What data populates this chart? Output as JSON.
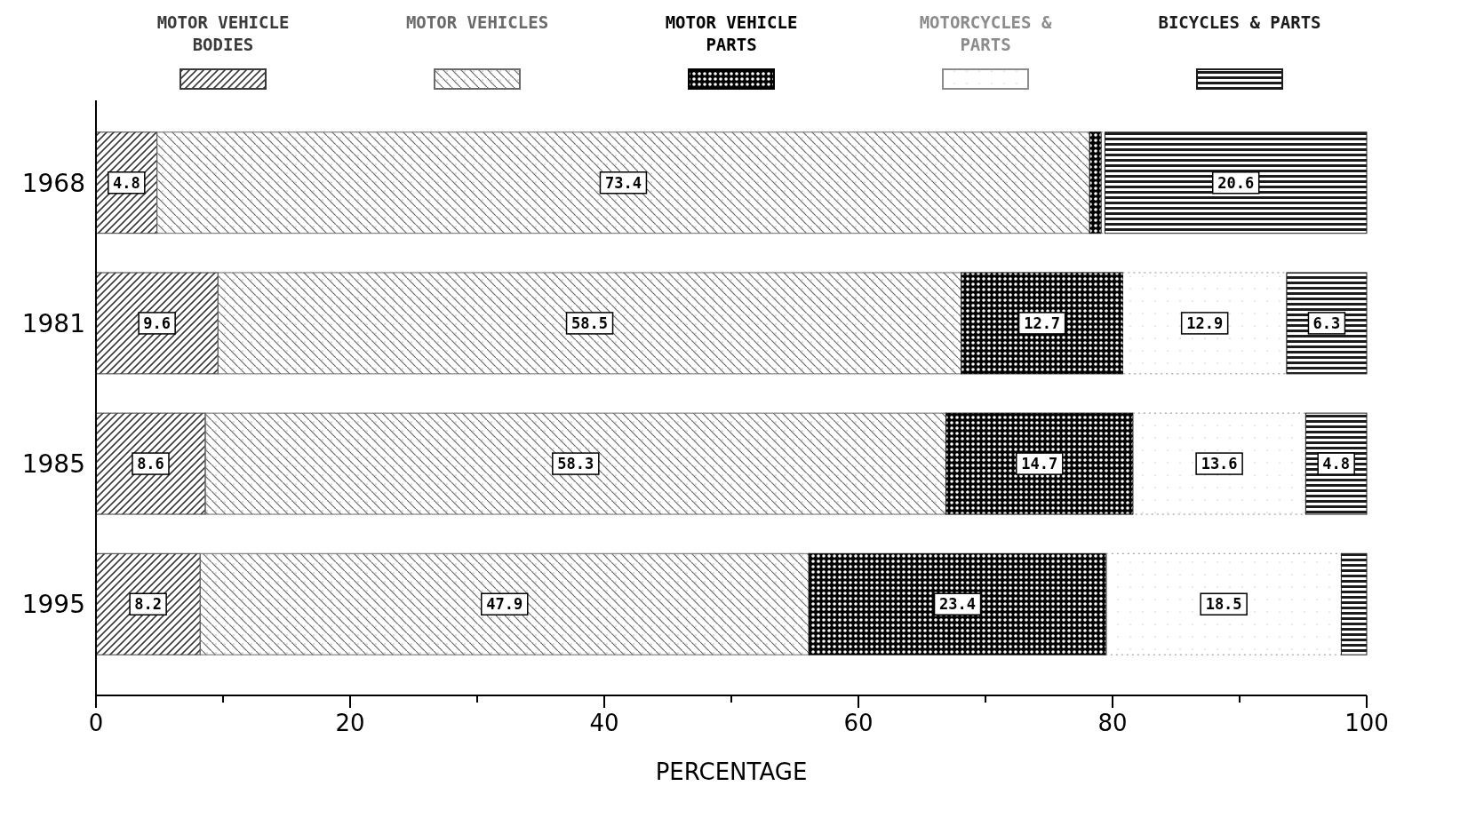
{
  "chart_data": {
    "type": "bar",
    "orientation": "horizontal",
    "stacked": true,
    "xlabel": "PERCENTAGE",
    "categories": [
      "1968",
      "1981",
      "1985",
      "1995"
    ],
    "series": [
      {
        "name": "MOTOR VEHICLE BODIES",
        "color": "#3a3a3a",
        "values": [
          4.8,
          9.6,
          8.6,
          8.2
        ],
        "value_labels": [
          "4.8",
          "9.6",
          "8.6",
          "8.2"
        ]
      },
      {
        "name": "MOTOR VEHICLES",
        "color": "#6a6a6a",
        "values": [
          73.4,
          58.5,
          58.3,
          47.9
        ],
        "value_labels": [
          "73.4",
          "58.5",
          "58.3",
          "47.9"
        ]
      },
      {
        "name": "MOTOR VEHICLE PARTS",
        "color": "#000000",
        "values": [
          0.9,
          12.7,
          14.7,
          23.4
        ],
        "value_labels": [
          null,
          "12.7",
          "14.7",
          "23.4"
        ]
      },
      {
        "name": "MOTORCYCLES & PARTS",
        "color": "#8c8c8c",
        "values": [
          0.3,
          12.9,
          13.6,
          18.5
        ],
        "value_labels": [
          null,
          "12.9",
          "13.6",
          "18.5"
        ]
      },
      {
        "name": "BICYCLES & PARTS",
        "color": "#1c1c1c",
        "values": [
          20.6,
          6.3,
          4.8,
          2.0
        ],
        "value_labels": [
          "20.6",
          "6.3",
          "4.8",
          null
        ]
      }
    ],
    "xlim": [
      0,
      100
    ],
    "xticks": [
      0,
      {
        "value": 10,
        "label": null
      },
      20,
      {
        "value": 30,
        "label": null
      },
      40,
      {
        "value": 50,
        "label": null
      },
      60,
      {
        "value": 70,
        "label": null
      },
      80,
      {
        "value": 90,
        "label": null
      },
      100
    ],
    "grid": false,
    "legend": "top"
  }
}
